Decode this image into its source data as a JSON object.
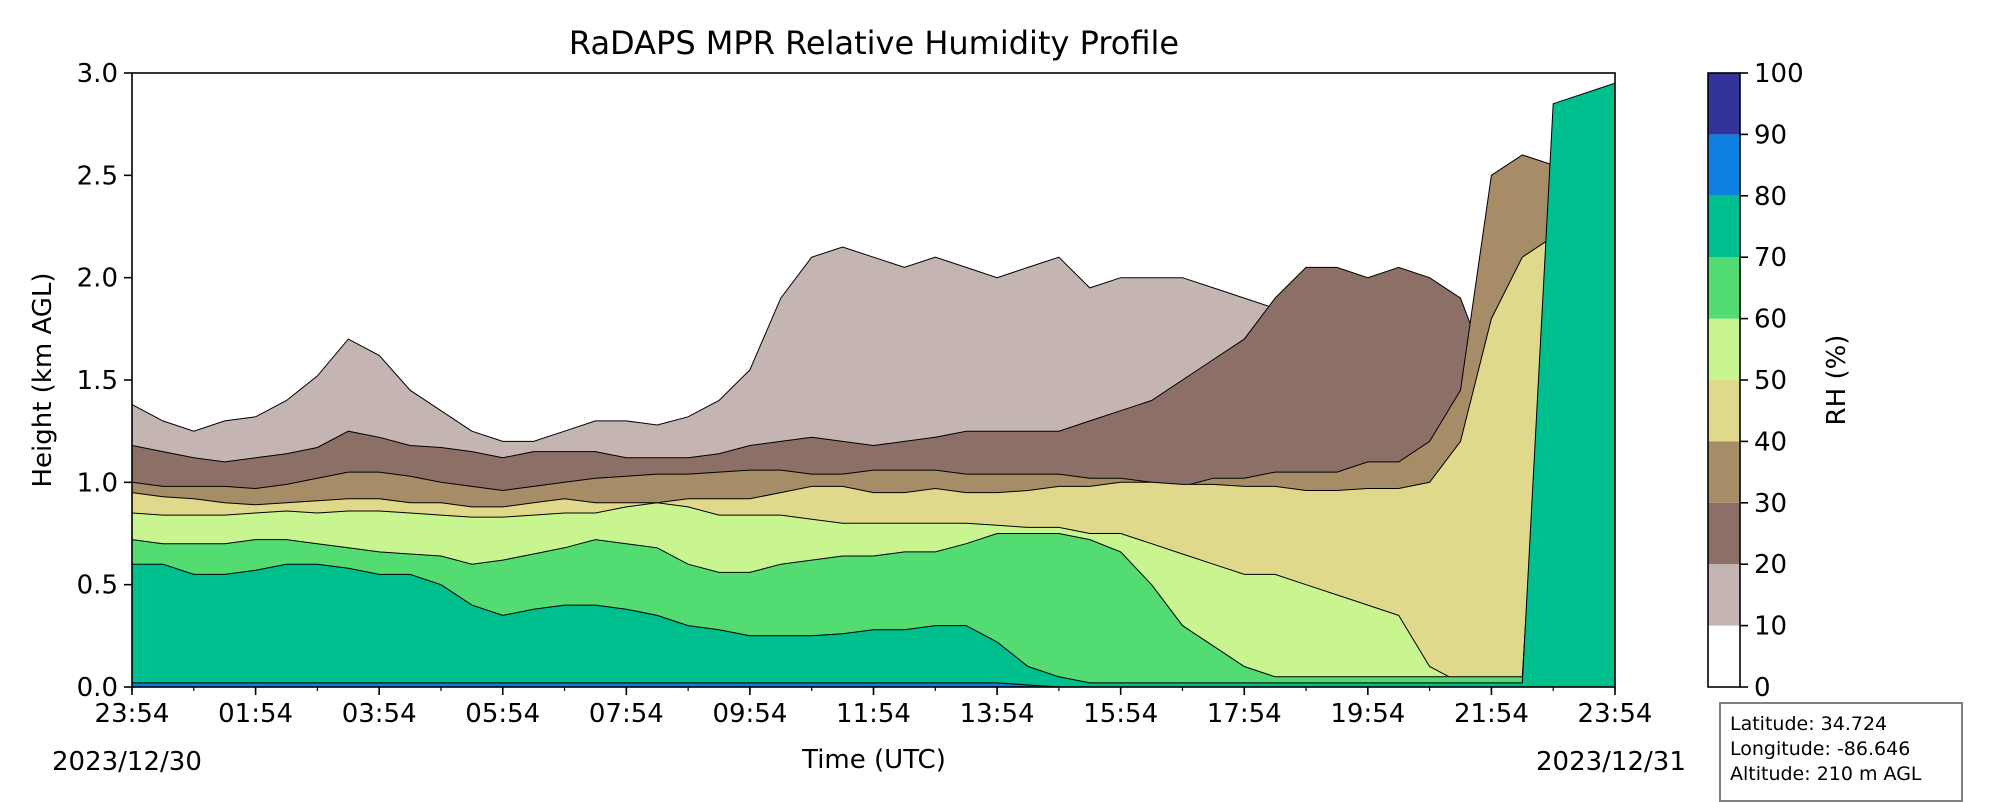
{
  "chart_data": {
    "type": "heatmap",
    "subtype": "filled contour",
    "title": "RaDAPS MPR Relative Humidity Profile",
    "xlabel": "Time (UTC)",
    "ylabel": "Height (km AGL)",
    "x_ticks": [
      "23:54",
      "01:54",
      "03:54",
      "05:54",
      "07:54",
      "09:54",
      "11:54",
      "13:54",
      "15:54",
      "17:54",
      "19:54",
      "21:54",
      "23:54"
    ],
    "x_range_hours": [
      0,
      24
    ],
    "start_date": "2023/12/30",
    "end_date": "2023/12/31",
    "y_ticks": [
      "0.0",
      "0.5",
      "1.0",
      "1.5",
      "2.0",
      "2.5",
      "3.0"
    ],
    "ylim": [
      0,
      3
    ],
    "colorbar": {
      "label": "RH (%)",
      "levels": [
        0,
        10,
        20,
        30,
        40,
        50,
        60,
        70,
        80,
        90,
        100
      ],
      "colors": [
        "#ffffff",
        "#c4b5b3",
        "#8c6f67",
        "#a68c67",
        "#e0d98b",
        "#c8f58f",
        "#53dc72",
        "#00bf8f",
        "#0e80e1",
        "#333399"
      ]
    },
    "contour_levels": [
      {
        "level": 10,
        "height_km": [
          1.38,
          1.3,
          1.25,
          1.3,
          1.32,
          1.4,
          1.52,
          1.7,
          1.62,
          1.45,
          1.35,
          1.25,
          1.2,
          1.2,
          1.25,
          1.3,
          1.3,
          1.28,
          1.32,
          1.4,
          1.55,
          1.9,
          2.1,
          2.15,
          2.1,
          2.05,
          2.1,
          2.05,
          2.0,
          2.05,
          2.1,
          1.95,
          2.0,
          2.0,
          2.0,
          1.95,
          1.9,
          1.85,
          1.8,
          1.65,
          1.6,
          1.62,
          1.62,
          1.58,
          1.55,
          1.55,
          1.55,
          1.6,
          1.6
        ]
      },
      {
        "level": 20,
        "height_km": [
          1.18,
          1.15,
          1.12,
          1.1,
          1.12,
          1.14,
          1.17,
          1.25,
          1.22,
          1.18,
          1.17,
          1.15,
          1.12,
          1.15,
          1.15,
          1.15,
          1.12,
          1.12,
          1.12,
          1.14,
          1.18,
          1.2,
          1.22,
          1.2,
          1.18,
          1.2,
          1.22,
          1.25,
          1.25,
          1.25,
          1.25,
          1.3,
          1.35,
          1.4,
          1.5,
          1.6,
          1.7,
          1.9,
          2.05,
          2.05,
          2.0,
          2.05,
          2.0,
          1.9,
          1.5,
          1.4,
          1.25,
          1.2,
          1.2
        ]
      },
      {
        "level": 30,
        "height_km": [
          1.0,
          0.98,
          0.98,
          0.98,
          0.97,
          0.99,
          1.02,
          1.05,
          1.05,
          1.03,
          1.0,
          0.98,
          0.96,
          0.98,
          1.0,
          1.02,
          1.03,
          1.04,
          1.04,
          1.05,
          1.06,
          1.06,
          1.04,
          1.04,
          1.06,
          1.06,
          1.06,
          1.04,
          1.04,
          1.04,
          1.04,
          1.02,
          1.02,
          1.0,
          0.98,
          1.02,
          1.02,
          1.05,
          1.05,
          1.05,
          1.1,
          1.1,
          1.2,
          1.45,
          2.5,
          2.6,
          2.55,
          2.4,
          2.3
        ]
      },
      {
        "level": 40,
        "height_km": [
          0.95,
          0.93,
          0.92,
          0.9,
          0.89,
          0.9,
          0.91,
          0.92,
          0.92,
          0.9,
          0.9,
          0.88,
          0.88,
          0.9,
          0.92,
          0.9,
          0.9,
          0.9,
          0.92,
          0.92,
          0.92,
          0.95,
          0.98,
          0.98,
          0.95,
          0.95,
          0.97,
          0.95,
          0.95,
          0.96,
          0.98,
          0.98,
          1.0,
          1.0,
          0.99,
          0.99,
          0.98,
          0.98,
          0.96,
          0.96,
          0.97,
          0.97,
          1.0,
          1.2,
          1.8,
          2.1,
          2.2,
          2.0,
          1.8
        ]
      },
      {
        "level": 50,
        "height_km": [
          0.85,
          0.84,
          0.84,
          0.84,
          0.85,
          0.86,
          0.85,
          0.86,
          0.86,
          0.85,
          0.84,
          0.83,
          0.83,
          0.84,
          0.85,
          0.85,
          0.88,
          0.9,
          0.88,
          0.84,
          0.84,
          0.84,
          0.82,
          0.8,
          0.8,
          0.8,
          0.8,
          0.8,
          0.79,
          0.78,
          0.78,
          0.75,
          0.75,
          0.7,
          0.65,
          0.6,
          0.55,
          0.55,
          0.5,
          0.45,
          0.4,
          0.35,
          0.1,
          0.02,
          0.02,
          0.03,
          2.6,
          2.7,
          2.75
        ]
      },
      {
        "level": 60,
        "height_km": [
          0.72,
          0.7,
          0.7,
          0.7,
          0.72,
          0.72,
          0.7,
          0.68,
          0.66,
          0.65,
          0.64,
          0.6,
          0.62,
          0.65,
          0.68,
          0.72,
          0.7,
          0.68,
          0.6,
          0.56,
          0.56,
          0.6,
          0.62,
          0.64,
          0.64,
          0.66,
          0.66,
          0.7,
          0.75,
          0.75,
          0.75,
          0.72,
          0.66,
          0.5,
          0.3,
          0.2,
          0.1,
          0.05,
          0.05,
          0.05,
          0.05,
          0.05,
          0.05,
          0.05,
          0.05,
          0.05,
          2.5,
          2.7,
          2.8
        ]
      },
      {
        "level": 70,
        "height_km": [
          0.6,
          0.6,
          0.55,
          0.55,
          0.57,
          0.6,
          0.6,
          0.58,
          0.55,
          0.55,
          0.5,
          0.4,
          0.35,
          0.38,
          0.4,
          0.4,
          0.38,
          0.35,
          0.3,
          0.28,
          0.25,
          0.25,
          0.25,
          0.26,
          0.28,
          0.28,
          0.3,
          0.3,
          0.22,
          0.1,
          0.05,
          0.02,
          0.02,
          0.02,
          0.02,
          0.02,
          0.02,
          0.02,
          0.02,
          0.02,
          0.02,
          0.02,
          0.02,
          0.02,
          0.02,
          0.02,
          2.85,
          2.9,
          2.95
        ]
      },
      {
        "level": 80,
        "height_km": [
          0.02,
          0.02,
          0.02,
          0.02,
          0.02,
          0.02,
          0.02,
          0.02,
          0.02,
          0.02,
          0.02,
          0.02,
          0.02,
          0.02,
          0.02,
          0.02,
          0.02,
          0.02,
          0.02,
          0.02,
          0.02,
          0.02,
          0.02,
          0.02,
          0.02,
          0.02,
          0.02,
          0.02,
          0.02,
          0.01,
          0,
          0,
          0,
          0,
          0,
          0,
          0,
          0,
          0,
          0,
          0,
          0,
          0,
          0,
          0,
          0,
          0,
          0,
          0
        ]
      }
    ],
    "info": {
      "latitude": "Latitude: 34.724",
      "longitude": "Longitude: -86.646",
      "altitude": "Altitude: 210 m AGL"
    }
  }
}
